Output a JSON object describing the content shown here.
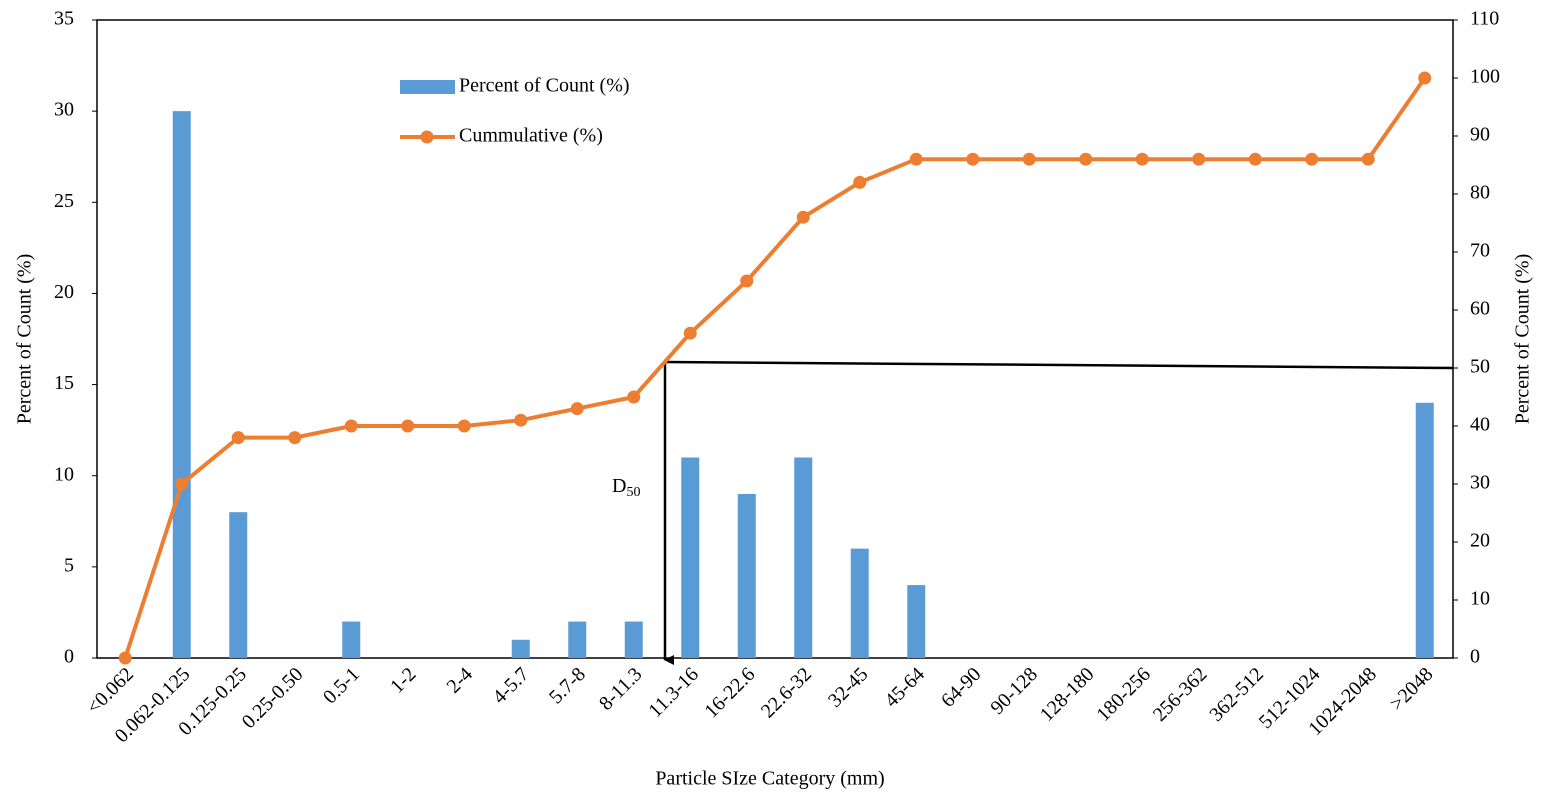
{
  "chart_data": {
    "type": "bar",
    "categories": [
      "<0.062",
      "0.062-0.125",
      "0.125-0.25",
      "0.25-0.50",
      "0.5-1",
      "1-2",
      "2-4",
      "4-5.7",
      "5.7-8",
      "8-11.3",
      "11.3-16",
      "16-22.6",
      "22.6-32",
      "32-45",
      "45-64",
      "64-90",
      "90-128",
      "128-180",
      "180-256",
      "256-362",
      "362-512",
      "512-1024",
      "1024-2048",
      ">2048"
    ],
    "series": [
      {
        "name": "Percent of Count (%)",
        "type": "bar",
        "color": "#5b9bd5",
        "values": [
          0,
          30,
          8,
          0,
          2,
          0,
          0,
          1,
          2,
          2,
          11,
          9,
          11,
          6,
          4,
          0,
          0,
          0,
          0,
          0,
          0,
          0,
          0,
          14
        ]
      },
      {
        "name": "Cummulative (%)",
        "type": "line",
        "axis": "y2",
        "color": "#ed7d31",
        "values": [
          0,
          30,
          38,
          38,
          40,
          40,
          40,
          41,
          43,
          45,
          56,
          65,
          76,
          82,
          86,
          86,
          86,
          86,
          86,
          86,
          86,
          86,
          86,
          100
        ]
      }
    ],
    "xlabel": "Particle SIze Category (mm)",
    "ylabel": "Percent of Count (%)",
    "y2label": "Percent of Count (%)",
    "ylim": [
      0,
      35
    ],
    "yticks": [
      0,
      5,
      10,
      15,
      20,
      25,
      30,
      35
    ],
    "y2lim": [
      0,
      110
    ],
    "y2ticks": [
      0,
      10,
      20,
      30,
      40,
      50,
      60,
      70,
      80,
      90,
      100,
      110
    ],
    "legend": "upper center",
    "annotation": {
      "text": "D",
      "subscript": "50"
    }
  }
}
